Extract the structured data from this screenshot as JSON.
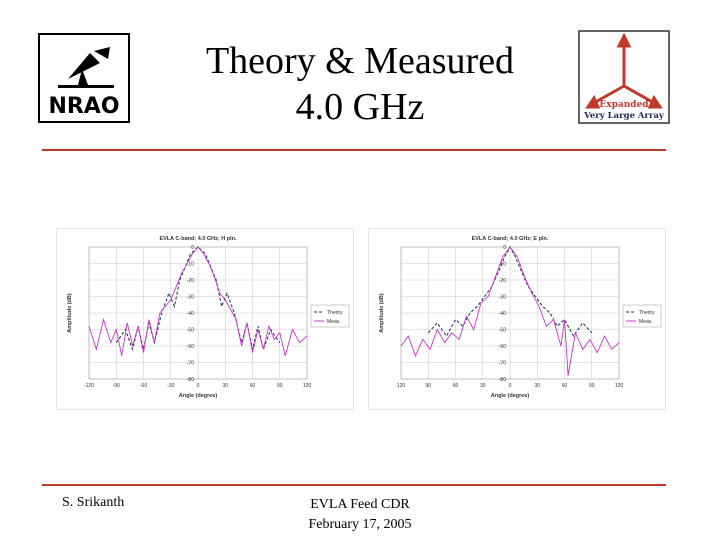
{
  "header": {
    "title_line1": "Theory & Measured",
    "title_line2": "4.0 GHz",
    "logo_left_text": "NRAO",
    "logo_right_line1": "Expanded",
    "logo_right_line2": "Very Large Array"
  },
  "footer": {
    "author": "S. Srikanth",
    "event": "EVLA Feed CDR",
    "date": "February 17, 2005"
  },
  "colors": {
    "rule": "#c0392b",
    "theory": "#1f2a5a",
    "meas": "#cc33cc"
  },
  "chart_data": [
    {
      "type": "line",
      "title": "EVLA C-band; 4.0 GHz; H pln.",
      "xlabel": "Angle (degree)",
      "ylabel": "Amplitude (dB)",
      "xlim": [
        -120,
        120
      ],
      "ylim": [
        -80,
        0
      ],
      "xticks": [
        "-120",
        "-90",
        "-60",
        "-30",
        "0",
        "30",
        "60",
        "90",
        "120"
      ],
      "yticks": [
        "0",
        "-10",
        "-20",
        "-30",
        "-40",
        "-50",
        "-60",
        "-70",
        "-80"
      ],
      "legend": "right",
      "grid": true,
      "series": [
        {
          "name": "Theory",
          "style": "dashed",
          "x": [
            -90,
            -80,
            -72,
            -66,
            -60,
            -54,
            -48,
            -40,
            -32,
            -26,
            -20,
            -14,
            -8,
            -4,
            0,
            4,
            8,
            14,
            20,
            26,
            32,
            40,
            48,
            54,
            60,
            66,
            72,
            80,
            90
          ],
          "y": [
            -58,
            -50,
            -62,
            -48,
            -62,
            -46,
            -58,
            -40,
            -28,
            -36,
            -20,
            -12,
            -4,
            -2,
            0,
            -2,
            -4,
            -12,
            -20,
            -36,
            -28,
            -40,
            -58,
            -46,
            -62,
            -48,
            -62,
            -50,
            -58
          ]
        },
        {
          "name": "Meas.",
          "style": "solid",
          "x": [
            -120,
            -112,
            -104,
            -96,
            -90,
            -84,
            -78,
            -72,
            -66,
            -60,
            -54,
            -48,
            -42,
            -36,
            -30,
            -24,
            -18,
            -12,
            -6,
            0,
            6,
            12,
            18,
            24,
            30,
            36,
            42,
            48,
            54,
            60,
            66,
            72,
            78,
            84,
            90,
            96,
            104,
            112,
            120
          ],
          "y": [
            -48,
            -62,
            -44,
            -58,
            -50,
            -66,
            -46,
            -60,
            -48,
            -64,
            -44,
            -58,
            -40,
            -36,
            -32,
            -24,
            -16,
            -10,
            -4,
            0,
            -4,
            -10,
            -18,
            -28,
            -32,
            -38,
            -44,
            -60,
            -46,
            -64,
            -50,
            -62,
            -48,
            -56,
            -52,
            -66,
            -50,
            -58,
            -54
          ]
        }
      ]
    },
    {
      "type": "line",
      "title": "EVLA C-band; 4.0 GHz; E pln.",
      "xlabel": "Angle (degree)",
      "ylabel": "Amplitude (dB)",
      "xlim": [
        -120,
        120
      ],
      "ylim": [
        -80,
        0
      ],
      "xticks": [
        "120",
        "90",
        "60",
        "30",
        "0",
        "30",
        "60",
        "90",
        "120"
      ],
      "yticks": [
        "0",
        "-10",
        "-20",
        "-30",
        "-40",
        "-50",
        "-60",
        "-70",
        "-80"
      ],
      "legend": "right",
      "grid": true,
      "series": [
        {
          "name": "Theory",
          "style": "dashed",
          "x": [
            -90,
            -80,
            -70,
            -60,
            -52,
            -44,
            -36,
            -28,
            -20,
            -12,
            -6,
            0,
            6,
            12,
            20,
            28,
            36,
            44,
            52,
            60,
            70,
            80,
            90
          ],
          "y": [
            -52,
            -46,
            -54,
            -44,
            -48,
            -40,
            -36,
            -30,
            -24,
            -14,
            -6,
            0,
            -6,
            -14,
            -24,
            -30,
            -36,
            -40,
            -48,
            -44,
            -54,
            -46,
            -52
          ]
        },
        {
          "name": "Meas.",
          "style": "solid",
          "x": [
            -120,
            -112,
            -104,
            -96,
            -88,
            -80,
            -72,
            -64,
            -56,
            -48,
            -40,
            -32,
            -24,
            -16,
            -8,
            0,
            8,
            16,
            24,
            32,
            40,
            48,
            56,
            60,
            64,
            72,
            80,
            88,
            96,
            104,
            112,
            120
          ],
          "y": [
            -60,
            -54,
            -66,
            -56,
            -62,
            -50,
            -58,
            -52,
            -56,
            -42,
            -50,
            -34,
            -30,
            -18,
            -6,
            0,
            -6,
            -18,
            -28,
            -36,
            -48,
            -44,
            -60,
            -44,
            -78,
            -52,
            -62,
            -56,
            -64,
            -54,
            -62,
            -58
          ]
        }
      ]
    }
  ]
}
